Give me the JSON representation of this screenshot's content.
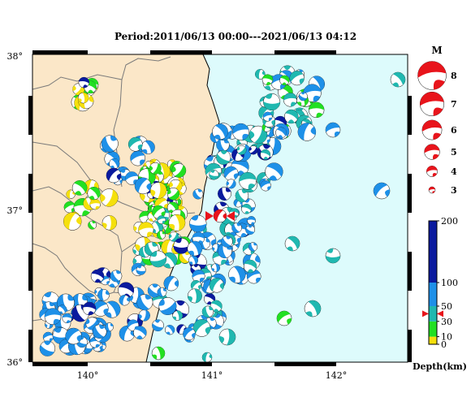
{
  "title": "Period:2011/06/13 00:00---2021/06/13 04:12",
  "map": {
    "lat_range": [
      36,
      38
    ],
    "lon_range": [
      139.6,
      142.6
    ],
    "lat_labels": [
      "38°",
      "37°",
      "36°"
    ],
    "lon_labels": [
      "140°",
      "141°",
      "142°"
    ],
    "colors": {
      "land": "#fbe7c8",
      "sea": "#ddfbfc",
      "border": "#7a7a7a",
      "coast": "#000000"
    }
  },
  "mainshock": {
    "lon": 141.1,
    "lat": 36.95,
    "magnitude": 7,
    "color": "#e8141b"
  },
  "magnitude_legend": {
    "header": "M",
    "items": [
      {
        "m": 8,
        "label": "8"
      },
      {
        "m": 7,
        "label": "7"
      },
      {
        "m": 6,
        "label": "6"
      },
      {
        "m": 5,
        "label": "5"
      },
      {
        "m": 4,
        "label": "4"
      },
      {
        "m": 3,
        "label": "3"
      }
    ]
  },
  "depth_scale": {
    "title": "Depth(km)",
    "ticks": [
      "200",
      "100",
      "50",
      "30",
      "10",
      "0"
    ],
    "bands": [
      {
        "from": 0,
        "to": 10,
        "color": "#f5e00c"
      },
      {
        "from": 10,
        "to": 30,
        "color": "#22e022"
      },
      {
        "from": 30,
        "to": 50,
        "color": "#20b8b0"
      },
      {
        "from": 50,
        "to": 100,
        "color": "#1e90e8"
      },
      {
        "from": 100,
        "to": 200,
        "color": "#0a1a9e"
      }
    ],
    "marker_depth": 40,
    "marker_color": "#e8141b"
  }
}
